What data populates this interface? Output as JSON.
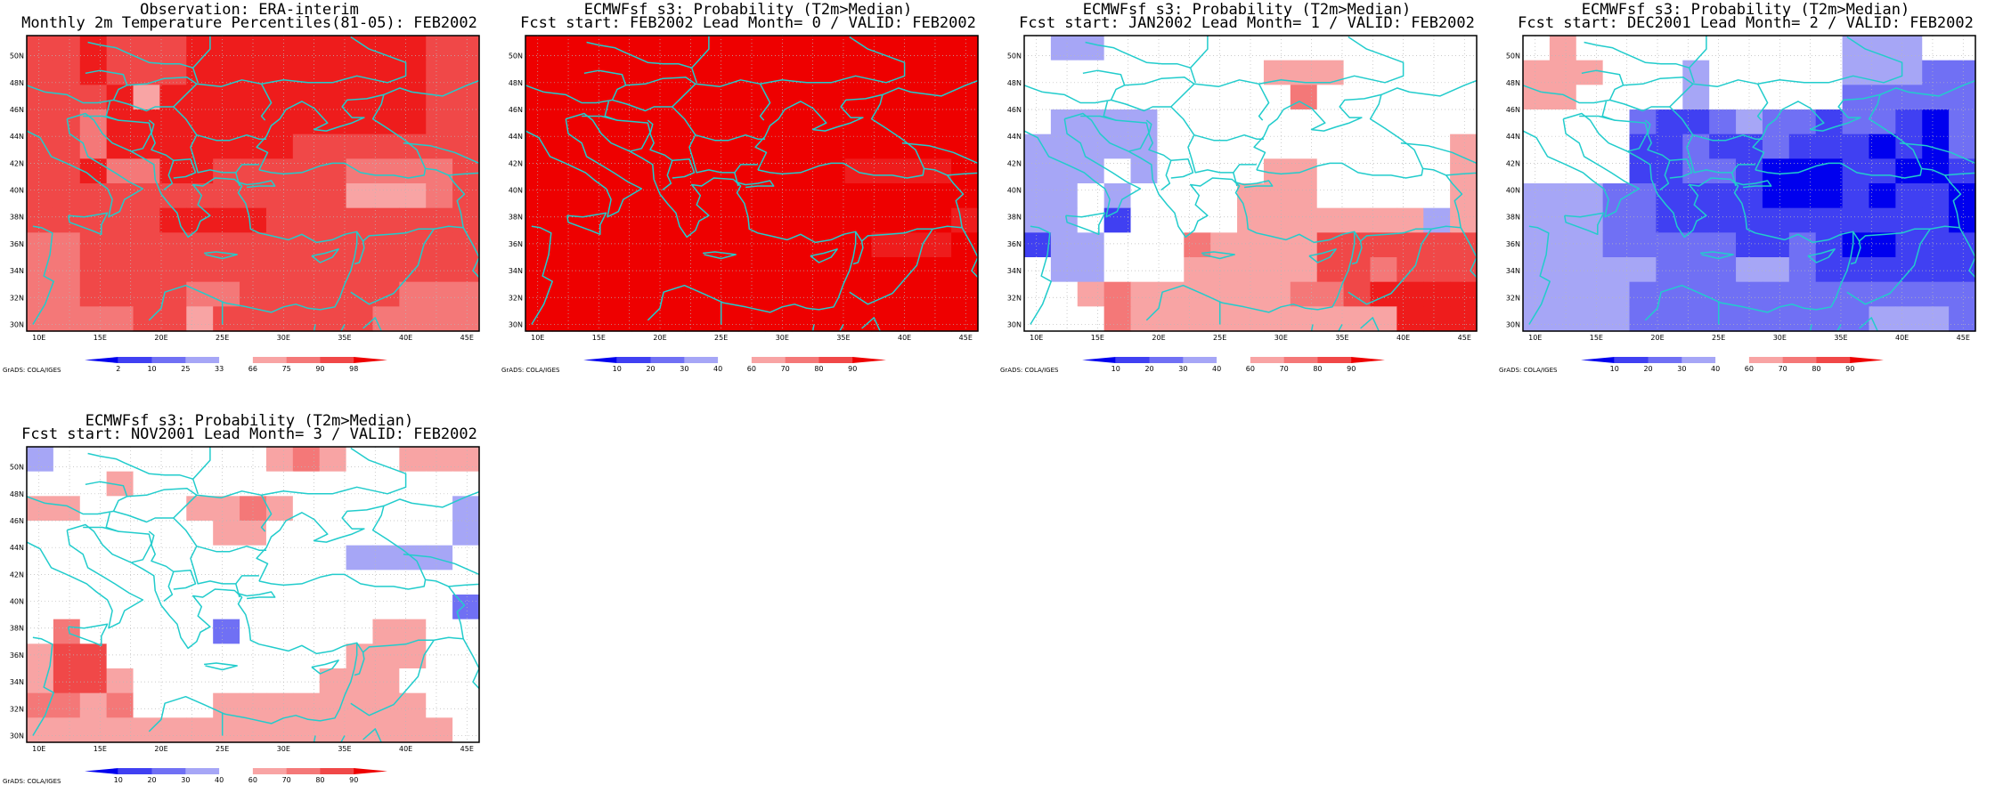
{
  "credit": "GrADS: COLA/IGES",
  "colors": {
    "cells": {
      "b1": "#0000ee",
      "b2": "#4040f2",
      "b3": "#7070f4",
      "b4": "#a6a6f6",
      "r1": "#f8a4a4",
      "r2": "#f47878",
      "r3": "#f04848",
      "r4": "#ee1c1c",
      "r5": "#ee0000"
    },
    "coast": "#22cccc",
    "grid": "#b8b8b8"
  },
  "axes": {
    "lon_labels": [
      "10E",
      "15E",
      "20E",
      "25E",
      "30E",
      "35E",
      "40E",
      "45E"
    ],
    "lat_labels": [
      "30N",
      "32N",
      "34N",
      "36N",
      "38N",
      "40N",
      "42N",
      "44N",
      "46N",
      "48N",
      "50N"
    ]
  },
  "colorbars": {
    "obs": {
      "labels": [
        "2",
        "10",
        "25",
        "33",
        "66",
        "75",
        "90",
        "98"
      ],
      "colors": [
        "#0000ee",
        "#4040f2",
        "#7070f4",
        "#a6a6f6",
        "#ffffff",
        "#f8a4a4",
        "#f47878",
        "#f04848",
        "#ee0000"
      ]
    },
    "prob": {
      "labels": [
        "10",
        "20",
        "30",
        "40",
        "60",
        "70",
        "80",
        "90"
      ],
      "colors": [
        "#0000ee",
        "#4040f2",
        "#7070f4",
        "#a6a6f6",
        "#ffffff",
        "#f8a4a4",
        "#f47878",
        "#f04848",
        "#ee0000"
      ]
    }
  },
  "panels": [
    {
      "line1": "Observation: ERA-interim",
      "line2": "Monthly 2m Temperature Percentiles(81-05): FEB2002",
      "colorbar": "obs",
      "fill": "r3",
      "cells": [
        [
          "r3",
          "r3",
          "r4",
          "r3",
          "r3",
          "r3",
          "r4",
          "r4",
          "r4",
          "r4",
          "r4",
          "r4",
          "r4",
          "r4",
          "r4",
          "r3",
          "r3"
        ],
        [
          "r3",
          "r3",
          "r4",
          "r3",
          "r3",
          "r3",
          "r4",
          "r4",
          "r4",
          "r4",
          "r4",
          "r4",
          "r4",
          "r4",
          "r4",
          "r3",
          "r3"
        ],
        [
          "r3",
          "r3",
          "r3",
          "r4",
          "r1",
          "r4",
          "r4",
          "r4",
          "r4",
          "r4",
          "r4",
          "r4",
          "r4",
          "r4",
          "r4",
          "r3",
          "r3"
        ],
        [
          "r3",
          "r3",
          "r2",
          "r4",
          "r4",
          "r4",
          "r4",
          "r4",
          "r4",
          "r4",
          "r4",
          "r4",
          "r4",
          "r4",
          "r4",
          "r3",
          "r3"
        ],
        [
          "r3",
          "r3",
          "r2",
          "r4",
          "r4",
          "r4",
          "r4",
          "r4",
          "r4",
          "r4",
          "r3",
          "r3",
          "r3",
          "r3",
          "r3",
          "r3",
          "r3"
        ],
        [
          "r3",
          "r3",
          "r4",
          "r2",
          "r2",
          "r4",
          "r4",
          "r3",
          "r3",
          "r3",
          "r3",
          "r3",
          "r2",
          "r2",
          "r2",
          "r2",
          "r3"
        ],
        [
          "r3",
          "r3",
          "r3",
          "r3",
          "r3",
          "r3",
          "r3",
          "r3",
          "r3",
          "r3",
          "r3",
          "r3",
          "r1",
          "r1",
          "r1",
          "r2",
          "r3"
        ],
        [
          "r3",
          "r3",
          "r3",
          "r3",
          "r3",
          "r4",
          "r4",
          "r4",
          "r4",
          "r3",
          "r3",
          "r3",
          "r3",
          "r3",
          "r3",
          "r3",
          "r3"
        ],
        [
          "r2",
          "r2",
          "r3",
          "r3",
          "r3",
          "r3",
          "r3",
          "r3",
          "r3",
          "r3",
          "r3",
          "r3",
          "r3",
          "r3",
          "r3",
          "r3",
          "r3"
        ],
        [
          "r2",
          "r2",
          "r3",
          "r3",
          "r3",
          "r3",
          "r3",
          "r3",
          "r3",
          "r3",
          "r3",
          "r3",
          "r3",
          "r3",
          "r3",
          "r3",
          "r3"
        ],
        [
          "r2",
          "r2",
          "r3",
          "r3",
          "r3",
          "r3",
          "r2",
          "r2",
          "r3",
          "r3",
          "r3",
          "r3",
          "r3",
          "r3",
          "r2",
          "r2",
          "r2"
        ],
        [
          "r2",
          "r2",
          "r2",
          "r2",
          "r3",
          "r3",
          "r1",
          "r3",
          "r3",
          "r3",
          "r3",
          "r3",
          "r3",
          "r2",
          "r2",
          "r2",
          "r2"
        ]
      ]
    },
    {
      "line1": "ECMWFsf s3: Probability (T2m>Median)",
      "line2": "Fcst start: FEB2002  Lead Month= 0 / VALID: FEB2002",
      "colorbar": "prob",
      "fill": "r5",
      "cells": [
        [
          "r5",
          "r5",
          "r5",
          "r5",
          "r5",
          "r5",
          "r5",
          "r5",
          "r5",
          "r5",
          "r5",
          "r5",
          "r5",
          "r5",
          "r5",
          "r5",
          "r5"
        ],
        [
          "r5",
          "r5",
          "r5",
          "r5",
          "r5",
          "r5",
          "r5",
          "r5",
          "r5",
          "r5",
          "r5",
          "r5",
          "r5",
          "r5",
          "r5",
          "r5",
          "r5"
        ],
        [
          "r5",
          "r5",
          "r5",
          "r5",
          "r5",
          "r5",
          "r5",
          "r5",
          "r5",
          "r5",
          "r5",
          "r5",
          "r5",
          "r5",
          "r5",
          "r5",
          "r5"
        ],
        [
          "r5",
          "r5",
          "r5",
          "r5",
          "r5",
          "r5",
          "r5",
          "r5",
          "r5",
          "r5",
          "r5",
          "r5",
          "r5",
          "r5",
          "r5",
          "r5",
          "r5"
        ],
        [
          "r5",
          "r5",
          "r5",
          "r5",
          "r5",
          "r5",
          "r5",
          "r5",
          "r5",
          "r5",
          "r5",
          "r5",
          "r5",
          "r5",
          "r5",
          "r5",
          "r5"
        ],
        [
          "r5",
          "r5",
          "r5",
          "r5",
          "r5",
          "r5",
          "r5",
          "r5",
          "r5",
          "r5",
          "r5",
          "r5",
          "r4",
          "r4",
          "r4",
          "r4",
          "r5"
        ],
        [
          "r5",
          "r5",
          "r5",
          "r5",
          "r5",
          "r5",
          "r5",
          "r5",
          "r5",
          "r5",
          "r5",
          "r5",
          "r5",
          "r5",
          "r5",
          "r5",
          "r5"
        ],
        [
          "r5",
          "r5",
          "r5",
          "r5",
          "r5",
          "r5",
          "r5",
          "r5",
          "r5",
          "r5",
          "r5",
          "r5",
          "r5",
          "r5",
          "r5",
          "r5",
          "r4"
        ],
        [
          "r5",
          "r5",
          "r5",
          "r5",
          "r5",
          "r5",
          "r5",
          "r5",
          "r5",
          "r5",
          "r5",
          "r5",
          "r5",
          "r4",
          "r4",
          "r4",
          "r5"
        ],
        [
          "r5",
          "r5",
          "r5",
          "r5",
          "r5",
          "r5",
          "r5",
          "r5",
          "r5",
          "r5",
          "r5",
          "r5",
          "r5",
          "r5",
          "r5",
          "r5",
          "r5"
        ],
        [
          "r5",
          "r5",
          "r5",
          "r5",
          "r5",
          "r5",
          "r5",
          "r5",
          "r5",
          "r5",
          "r5",
          "r5",
          "r5",
          "r5",
          "r5",
          "r5",
          "r5"
        ],
        [
          "r5",
          "r5",
          "r5",
          "r5",
          "r5",
          "r5",
          "r5",
          "r5",
          "r5",
          "r5",
          "r5",
          "r5",
          "r5",
          "r5",
          "r5",
          "r5",
          "r5"
        ]
      ]
    },
    {
      "line1": "ECMWFsf s3: Probability (T2m>Median)",
      "line2": "Fcst start: JAN2002  Lead Month= 1 / VALID: FEB2002",
      "colorbar": "prob",
      "fill": "w",
      "cells": [
        [
          "w",
          "b4",
          "b4",
          "w",
          "w",
          "w",
          "w",
          "w",
          "w",
          "w",
          "w",
          "w",
          "w",
          "w",
          "w",
          "w",
          "w"
        ],
        [
          "w",
          "w",
          "w",
          "w",
          "w",
          "w",
          "w",
          "w",
          "w",
          "r1",
          "r1",
          "r1",
          "w",
          "w",
          "w",
          "w",
          "w"
        ],
        [
          "w",
          "w",
          "w",
          "w",
          "w",
          "w",
          "w",
          "w",
          "w",
          "w",
          "r2",
          "w",
          "w",
          "w",
          "w",
          "w",
          "w"
        ],
        [
          "w",
          "b4",
          "b4",
          "b4",
          "b4",
          "w",
          "w",
          "w",
          "w",
          "w",
          "w",
          "w",
          "w",
          "w",
          "w",
          "w",
          "w"
        ],
        [
          "b4",
          "b4",
          "b4",
          "b4",
          "b4",
          "w",
          "w",
          "w",
          "w",
          "w",
          "w",
          "w",
          "w",
          "w",
          "w",
          "w",
          "r1"
        ],
        [
          "b4",
          "b4",
          "b4",
          "w",
          "b4",
          "w",
          "w",
          "w",
          "w",
          "r1",
          "r1",
          "w",
          "w",
          "w",
          "w",
          "w",
          "r1"
        ],
        [
          "b4",
          "b4",
          "w",
          "b4",
          "w",
          "w",
          "w",
          "w",
          "r1",
          "r1",
          "r1",
          "w",
          "w",
          "w",
          "w",
          "w",
          "r1"
        ],
        [
          "b4",
          "b4",
          "w",
          "b2",
          "w",
          "w",
          "w",
          "w",
          "r1",
          "r1",
          "r1",
          "r1",
          "r1",
          "r1",
          "r1",
          "b4",
          "r1"
        ],
        [
          "b2",
          "b4",
          "b4",
          "w",
          "w",
          "w",
          "r2",
          "r1",
          "r1",
          "r1",
          "r1",
          "r3",
          "r3",
          "r3",
          "r3",
          "r3",
          "r3"
        ],
        [
          "w",
          "b4",
          "b4",
          "w",
          "w",
          "w",
          "r1",
          "r1",
          "r1",
          "r1",
          "r1",
          "r3",
          "r3",
          "r2",
          "r3",
          "r3",
          "r3"
        ],
        [
          "w",
          "w",
          "r1",
          "r2",
          "r1",
          "r1",
          "r1",
          "r1",
          "r1",
          "r1",
          "r2",
          "r2",
          "r3",
          "r4",
          "r4",
          "r4",
          "r4"
        ],
        [
          "w",
          "w",
          "w",
          "r2",
          "r1",
          "r1",
          "r1",
          "r1",
          "r1",
          "r1",
          "r1",
          "r1",
          "r1",
          "r1",
          "r4",
          "r4",
          "r4"
        ]
      ]
    },
    {
      "line1": "ECMWFsf s3: Probability (T2m>Median)",
      "line2": "Fcst start: DEC2001  Lead Month= 2 / VALID: FEB2002",
      "colorbar": "prob",
      "fill": "b3",
      "cells": [
        [
          "w",
          "r1",
          "w",
          "w",
          "w",
          "w",
          "w",
          "w",
          "w",
          "w",
          "w",
          "w",
          "b4",
          "b4",
          "b4",
          "w",
          "w"
        ],
        [
          "r1",
          "r1",
          "r1",
          "w",
          "w",
          "w",
          "b4",
          "w",
          "w",
          "w",
          "w",
          "w",
          "b4",
          "b4",
          "b4",
          "b3",
          "b3"
        ],
        [
          "r1",
          "r1",
          "w",
          "w",
          "w",
          "w",
          "b4",
          "w",
          "w",
          "w",
          "w",
          "w",
          "b3",
          "b3",
          "b3",
          "b3",
          "b3"
        ],
        [
          "w",
          "w",
          "w",
          "w",
          "b3",
          "b2",
          "b2",
          "b3",
          "b4",
          "b3",
          "b3",
          "b2",
          "b3",
          "b3",
          "b2",
          "b1",
          "b3"
        ],
        [
          "w",
          "w",
          "w",
          "w",
          "b2",
          "b2",
          "b3",
          "b2",
          "b2",
          "b3",
          "b2",
          "b2",
          "b2",
          "b1",
          "b2",
          "b1",
          "b3"
        ],
        [
          "w",
          "w",
          "w",
          "w",
          "b2",
          "b2",
          "b3",
          "b3",
          "b2",
          "b1",
          "b1",
          "b1",
          "b2",
          "b2",
          "b1",
          "b1",
          "b2"
        ],
        [
          "b4",
          "b4",
          "b4",
          "b3",
          "b3",
          "b2",
          "b2",
          "b2",
          "b2",
          "b1",
          "b1",
          "b1",
          "b2",
          "b1",
          "b2",
          "b2",
          "b1"
        ],
        [
          "b4",
          "b4",
          "b4",
          "b3",
          "b3",
          "b2",
          "b2",
          "b2",
          "b2",
          "b2",
          "b2",
          "b2",
          "b2",
          "b2",
          "b2",
          "b2",
          "b1"
        ],
        [
          "b4",
          "b4",
          "b4",
          "b3",
          "b3",
          "b3",
          "b3",
          "b3",
          "b2",
          "b2",
          "b3",
          "b2",
          "b1",
          "b1",
          "b2",
          "b2",
          "b2"
        ],
        [
          "b4",
          "b4",
          "b4",
          "b4",
          "b4",
          "b3",
          "b3",
          "b3",
          "b4",
          "b4",
          "b3",
          "b2",
          "b2",
          "b2",
          "b2",
          "b2",
          "b2"
        ],
        [
          "b4",
          "b4",
          "b4",
          "b4",
          "b3",
          "b3",
          "b3",
          "b3",
          "b3",
          "b3",
          "b3",
          "b3",
          "b3",
          "b3",
          "b3",
          "b3",
          "b3"
        ],
        [
          "b4",
          "b4",
          "b4",
          "b4",
          "b3",
          "b3",
          "b3",
          "b3",
          "b3",
          "b3",
          "b3",
          "b3",
          "b3",
          "b4",
          "b4",
          "b4",
          "b3"
        ]
      ]
    },
    {
      "line1": "ECMWFsf s3: Probability (T2m>Median)",
      "line2": "Fcst start: NOV2001  Lead Month= 3 / VALID: FEB2002",
      "colorbar": "prob",
      "fill": "w",
      "cells": [
        [
          "b4",
          "w",
          "w",
          "w",
          "w",
          "w",
          "w",
          "w",
          "w",
          "r1",
          "r2",
          "r1",
          "w",
          "w",
          "r1",
          "r1",
          "r1"
        ],
        [
          "w",
          "w",
          "w",
          "r1",
          "w",
          "w",
          "w",
          "w",
          "w",
          "w",
          "w",
          "w",
          "w",
          "w",
          "w",
          "w",
          "w"
        ],
        [
          "r1",
          "r1",
          "w",
          "w",
          "w",
          "w",
          "r1",
          "r1",
          "r2",
          "r1",
          "w",
          "w",
          "w",
          "w",
          "w",
          "w",
          "b4"
        ],
        [
          "w",
          "w",
          "w",
          "w",
          "w",
          "w",
          "w",
          "r1",
          "r1",
          "w",
          "w",
          "w",
          "w",
          "w",
          "w",
          "w",
          "b4"
        ],
        [
          "w",
          "w",
          "w",
          "w",
          "w",
          "w",
          "w",
          "w",
          "w",
          "w",
          "w",
          "w",
          "b4",
          "b4",
          "b4",
          "b4",
          "w"
        ],
        [
          "w",
          "w",
          "w",
          "w",
          "w",
          "w",
          "w",
          "w",
          "w",
          "w",
          "w",
          "w",
          "w",
          "w",
          "w",
          "w",
          "w"
        ],
        [
          "w",
          "w",
          "w",
          "w",
          "w",
          "w",
          "w",
          "w",
          "w",
          "w",
          "w",
          "w",
          "w",
          "w",
          "w",
          "w",
          "b3"
        ],
        [
          "w",
          "r2",
          "w",
          "w",
          "w",
          "w",
          "w",
          "b3",
          "w",
          "w",
          "w",
          "w",
          "w",
          "r1",
          "r1",
          "w",
          "w"
        ],
        [
          "r1",
          "r3",
          "r3",
          "w",
          "w",
          "w",
          "w",
          "w",
          "w",
          "w",
          "w",
          "w",
          "r1",
          "r1",
          "r1",
          "w",
          "w"
        ],
        [
          "r1",
          "r3",
          "r3",
          "r1",
          "w",
          "w",
          "w",
          "w",
          "w",
          "w",
          "w",
          "r1",
          "r1",
          "r1",
          "w",
          "w",
          "w"
        ],
        [
          "r2",
          "r2",
          "r1",
          "r2",
          "w",
          "w",
          "w",
          "r1",
          "r1",
          "r1",
          "r1",
          "r1",
          "r1",
          "r1",
          "r1",
          "w",
          "w"
        ],
        [
          "r1",
          "r1",
          "r1",
          "r1",
          "r1",
          "r1",
          "r1",
          "r1",
          "r1",
          "r1",
          "r1",
          "r1",
          "r1",
          "r1",
          "r1",
          "r1",
          "w"
        ]
      ]
    }
  ]
}
